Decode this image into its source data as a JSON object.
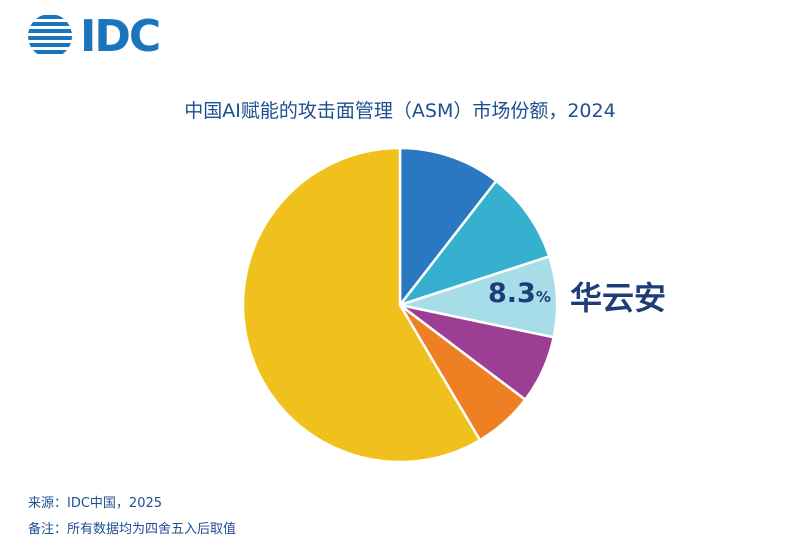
{
  "header": {
    "logo_text": "IDC"
  },
  "chart_data": {
    "type": "pie",
    "title": "中国AI赋能的攻击面管理（ASM）市场份额，2024",
    "slices": [
      {
        "value": 10.5,
        "color": "#2a78c2"
      },
      {
        "value": 9.5,
        "color": "#35b1cf"
      },
      {
        "value": 8.3,
        "color": "#a7dde8",
        "label": "华云安",
        "value_label": "8.3",
        "unit": "%"
      },
      {
        "value": 7.0,
        "color": "#9c3e93"
      },
      {
        "value": 6.2,
        "color": "#ef7f23"
      },
      {
        "value": 58.5,
        "color": "#f0c11d"
      }
    ]
  },
  "footer": {
    "source": "来源：IDC中国，2025",
    "note": "备注：所有数据均为四舍五入后取值"
  }
}
